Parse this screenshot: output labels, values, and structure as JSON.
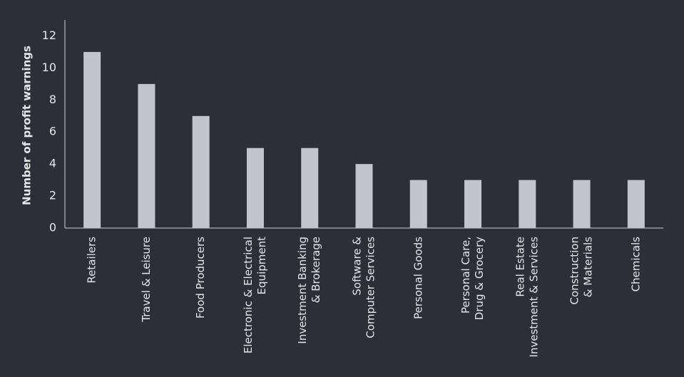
{
  "chart_data": {
    "type": "bar",
    "title": "",
    "xlabel": "",
    "ylabel": "Number of profit warnings",
    "ylim": [
      0,
      13
    ],
    "yticks": [
      "0",
      "2",
      "4",
      "6",
      "8",
      "10",
      "12"
    ],
    "grid": false,
    "categories": [
      [
        "Retailers"
      ],
      [
        "Travel & Leisure"
      ],
      [
        "Food Producers"
      ],
      [
        "Electronic & Electrical",
        "Equipment"
      ],
      [
        "Investment Banking",
        "& Brokerage"
      ],
      [
        "Software &",
        "Computer Services"
      ],
      [
        "Personal Goods"
      ],
      [
        "Personal Care,",
        "Drug & Grocery"
      ],
      [
        "Real Estate",
        "Investment & Services"
      ],
      [
        "Construction",
        "& Materials"
      ],
      [
        "Chemicals"
      ]
    ],
    "values": [
      11,
      9,
      7,
      5,
      5,
      4,
      3,
      3,
      3,
      3,
      3
    ],
    "colors": {
      "bar": "#c4c3d0",
      "axis": "#9a9aa6",
      "text": "#e6e6ea",
      "background": "#2e2e38"
    }
  }
}
